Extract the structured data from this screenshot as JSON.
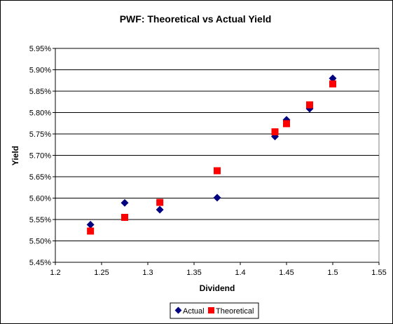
{
  "chart_data": {
    "type": "scatter",
    "title": "PWF: Theoretical vs Actual Yield",
    "xlabel": "Dividend",
    "ylabel": "Yield",
    "xlim": [
      1.2,
      1.55
    ],
    "ylim": [
      5.45,
      5.95
    ],
    "x_ticks": [
      "1.2",
      "1.25",
      "1.3",
      "1.35",
      "1.4",
      "1.45",
      "1.5",
      "1.55"
    ],
    "y_ticks": [
      "5.45%",
      "5.50%",
      "5.55%",
      "5.60%",
      "5.65%",
      "5.70%",
      "5.75%",
      "5.80%",
      "5.85%",
      "5.90%",
      "5.95%"
    ],
    "y_unit": "%",
    "grid": "horizontal",
    "legend_position": "bottom",
    "series": [
      {
        "name": "Actual",
        "marker": "diamond",
        "color": "#000080",
        "points": [
          {
            "x": 1.238,
            "y": 5.538
          },
          {
            "x": 1.275,
            "y": 5.589
          },
          {
            "x": 1.313,
            "y": 5.573
          },
          {
            "x": 1.375,
            "y": 5.601
          },
          {
            "x": 1.4375,
            "y": 5.744
          },
          {
            "x": 1.45,
            "y": 5.783
          },
          {
            "x": 1.475,
            "y": 5.809
          },
          {
            "x": 1.5,
            "y": 5.88
          }
        ]
      },
      {
        "name": "Theoretical",
        "marker": "square",
        "color": "#ff0000",
        "points": [
          {
            "x": 1.238,
            "y": 5.523
          },
          {
            "x": 1.275,
            "y": 5.555
          },
          {
            "x": 1.313,
            "y": 5.59
          },
          {
            "x": 1.375,
            "y": 5.664
          },
          {
            "x": 1.4375,
            "y": 5.755
          },
          {
            "x": 1.45,
            "y": 5.774
          },
          {
            "x": 1.475,
            "y": 5.818
          },
          {
            "x": 1.5,
            "y": 5.867
          }
        ]
      }
    ]
  }
}
